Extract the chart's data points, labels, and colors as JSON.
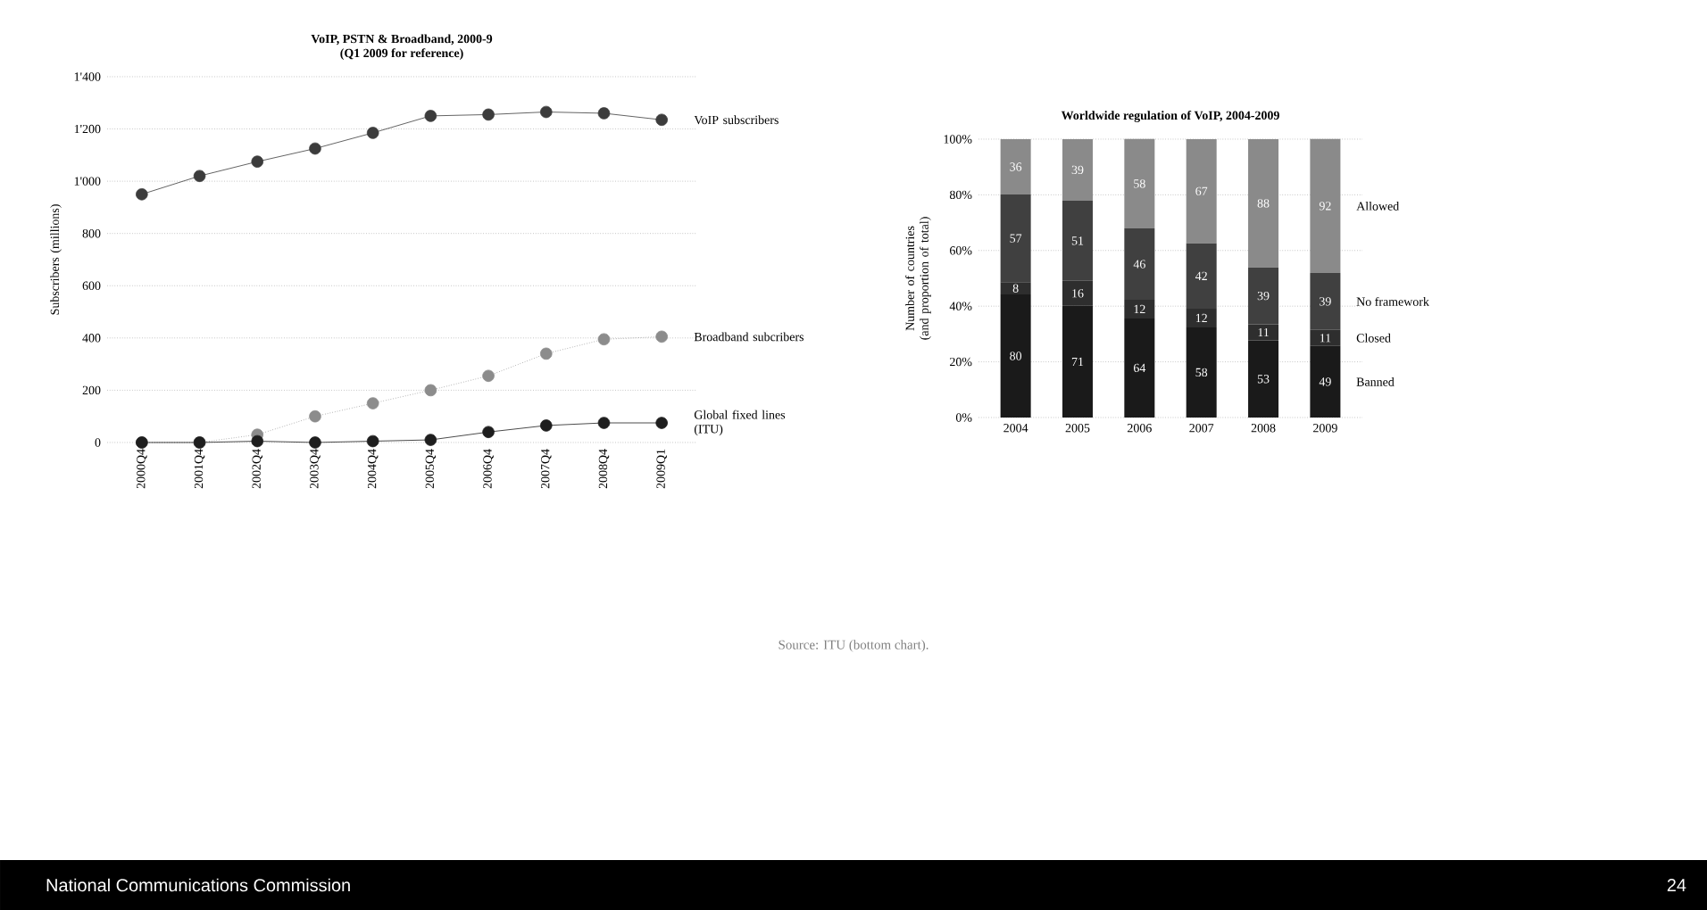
{
  "chart_data": [
    {
      "type": "line",
      "title": "VoIP, PSTN & Broadband, 2000-9",
      "subtitle": "(Q1 2009 for reference)",
      "ylabel": "Subscribers (millions)",
      "categories": [
        "2000Q4",
        "2001Q4",
        "2002Q4",
        "2003Q4",
        "2004Q4",
        "2005Q4",
        "2006Q4",
        "2007Q4",
        "2008Q4",
        "2009Q1"
      ],
      "ylim": [
        0,
        1400
      ],
      "yticks": [
        0,
        200,
        400,
        600,
        800,
        {
          "value": 1000,
          "label": "1'000"
        },
        {
          "value": 1200,
          "label": "1'200"
        },
        {
          "value": 1400,
          "label": "1'400"
        }
      ],
      "grid": "y",
      "marker": "circle",
      "series": [
        {
          "name": "VoIP subscribers",
          "color": "#3c3c3c",
          "line_style": "solid",
          "values": [
            950,
            1020,
            1075,
            1125,
            1185,
            1250,
            1255,
            1265,
            1260,
            1235
          ]
        },
        {
          "name": "Broadband subcribers",
          "color": "#8c8c8c",
          "line_style": "dotted",
          "values": [
            0,
            0,
            30,
            100,
            150,
            200,
            255,
            340,
            395,
            405
          ]
        },
        {
          "name": "Global fixed lines (ITU)",
          "color": "#1e1e1e",
          "line_style": "solid",
          "values": [
            0,
            0,
            5,
            0,
            5,
            10,
            40,
            65,
            75,
            75
          ]
        }
      ],
      "annotations": [
        "Source: ITU (bottom chart).",
        "National Communications Commission",
        "24"
      ]
    },
    {
      "type": "bar",
      "stacked": true,
      "title": "Worldwide regulation of VoIP, 2004-2009",
      "ylabel": "Number of countries (and proportion of total)",
      "categories": [
        "2004",
        "2005",
        "2006",
        "2007",
        "2008",
        "2009"
      ],
      "ylim": [
        0,
        100
      ],
      "yticks": [
        {
          "value": 0,
          "label": "0%"
        },
        {
          "value": 20,
          "label": "20%"
        },
        {
          "value": 40,
          "label": "40%"
        },
        {
          "value": 60,
          "label": "60%"
        },
        {
          "value": 80,
          "label": "80%"
        },
        {
          "value": 100,
          "label": "100%"
        }
      ],
      "grid": "y",
      "series": [
        {
          "name": "Banned",
          "color": "#1a1a1a",
          "values": [
            44.2,
            40.1,
            35.6,
            32.4,
            27.7,
            25.7
          ]
        },
        {
          "name": "Closed",
          "color": "#2e2e2e",
          "values": [
            4.4,
            9.0,
            6.7,
            6.7,
            5.8,
            5.8
          ]
        },
        {
          "name": "No framework",
          "color": "#404040",
          "values": [
            31.5,
            28.8,
            25.6,
            23.5,
            20.4,
            20.4
          ]
        },
        {
          "name": "Allowed",
          "color": "#8a8a8a",
          "values": [
            19.9,
            22.1,
            32.2,
            37.4,
            46.1,
            48.2
          ]
        }
      ],
      "annotations": [
        "80",
        "8",
        "57",
        "36",
        "71",
        "16",
        "51",
        "39",
        "64",
        "12",
        "46",
        "58",
        "58",
        "12",
        "42",
        "67",
        "53",
        "11",
        "39",
        "88",
        "49",
        "11",
        "39",
        "92"
      ]
    }
  ]
}
